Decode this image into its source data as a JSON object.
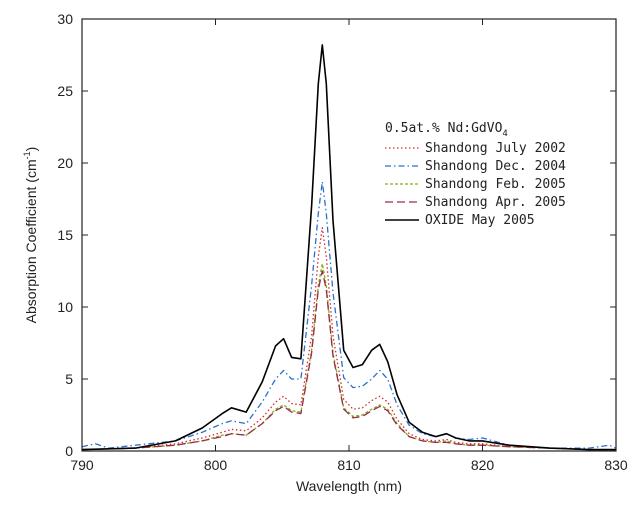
{
  "chart_data": {
    "type": "line",
    "xlabel": "Wavelength (nm)",
    "ylabel": "Absorption Coefficient (cm",
    "ylabel_superscript": "-1",
    "ylabel_close": ")",
    "xlim": [
      790,
      830
    ],
    "ylim": [
      0,
      30
    ],
    "xticks": [
      790,
      800,
      810,
      820,
      830
    ],
    "yticks": [
      0,
      5,
      10,
      15,
      20,
      25,
      30
    ],
    "grid": false,
    "legend_position": "upper-right",
    "legend": {
      "title": "0.5at.% Nd:GdVO",
      "title_subscript": "4"
    },
    "series": [
      {
        "name": "Shandong July 2002",
        "color": "#d8282c",
        "style": "dotted",
        "x": [
          790,
          794,
          797,
          799,
          800.5,
          801.2,
          802.3,
          803.5,
          804.5,
          805.1,
          805.7,
          806.4,
          807.2,
          807.7,
          808.0,
          808.3,
          808.8,
          809.6,
          810.3,
          811.0,
          811.7,
          812.3,
          812.9,
          813.6,
          814.5,
          815.5,
          816.5,
          817.3,
          818.0,
          819.0,
          820.0,
          822.0,
          825.0,
          828.0,
          830.0
        ],
        "values": [
          0.1,
          0.2,
          0.5,
          0.9,
          1.3,
          1.5,
          1.4,
          2.3,
          3.4,
          3.8,
          3.3,
          3.2,
          8.0,
          13.5,
          15.5,
          13.5,
          8.0,
          3.6,
          2.9,
          3.0,
          3.5,
          3.8,
          3.4,
          2.2,
          1.2,
          0.8,
          0.7,
          0.8,
          0.6,
          0.5,
          0.5,
          0.3,
          0.2,
          0.1,
          0.1
        ]
      },
      {
        "name": "Shandong Dec. 2004",
        "color": "#2a6fd0",
        "style": "dash-dot",
        "x": [
          790,
          791,
          792,
          794,
          797,
          799,
          800.5,
          801.2,
          802.3,
          803.5,
          804.5,
          805.1,
          805.7,
          806.4,
          807.2,
          807.7,
          808.0,
          808.3,
          808.8,
          809.6,
          810.3,
          811.0,
          811.7,
          812.3,
          812.9,
          813.6,
          814.5,
          815.5,
          816.5,
          817.3,
          818.0,
          819.0,
          820.0,
          822.0,
          825.0,
          828.0,
          829.5,
          830.0
        ],
        "values": [
          0.3,
          0.5,
          0.2,
          0.4,
          0.7,
          1.3,
          1.9,
          2.1,
          1.9,
          3.4,
          5.0,
          5.6,
          5.0,
          5.0,
          11.5,
          16.5,
          18.7,
          16.5,
          11.0,
          5.1,
          4.4,
          4.5,
          5.0,
          5.6,
          5.0,
          3.2,
          1.8,
          1.2,
          1.0,
          1.2,
          0.9,
          0.8,
          0.9,
          0.4,
          0.2,
          0.2,
          0.4,
          0.2
        ]
      },
      {
        "name": "Shandong Feb. 2005",
        "color": "#7fae1d",
        "style": "dashed-short",
        "x": [
          790,
          794,
          797,
          799,
          800.5,
          801.2,
          802.3,
          803.5,
          804.5,
          805.1,
          805.7,
          806.4,
          807.2,
          807.7,
          808.0,
          808.3,
          808.8,
          809.6,
          810.3,
          811.0,
          811.7,
          812.3,
          812.9,
          813.6,
          814.5,
          815.5,
          816.5,
          817.3,
          818.0,
          819.0,
          820.0,
          822.0,
          825.0,
          828.0,
          830.0
        ],
        "values": [
          0.1,
          0.2,
          0.4,
          0.7,
          1.1,
          1.2,
          1.1,
          1.9,
          2.9,
          3.2,
          2.8,
          2.7,
          7.0,
          11.5,
          13.0,
          11.5,
          6.8,
          3.0,
          2.4,
          2.5,
          2.9,
          3.2,
          2.9,
          1.9,
          1.0,
          0.7,
          0.6,
          0.7,
          0.5,
          0.4,
          0.4,
          0.3,
          0.2,
          0.1,
          0.1
        ]
      },
      {
        "name": "Shandong Apr. 2005",
        "color": "#9c2a4a",
        "style": "dashed-long",
        "x": [
          790,
          794,
          797,
          799,
          800.5,
          801.2,
          802.3,
          803.5,
          804.5,
          805.1,
          805.7,
          806.4,
          807.2,
          807.7,
          808.0,
          808.3,
          808.8,
          809.6,
          810.3,
          811.0,
          811.7,
          812.3,
          812.9,
          813.6,
          814.5,
          815.5,
          816.5,
          817.3,
          818.0,
          819.0,
          820.0,
          822.0,
          825.0,
          828.0,
          830.0
        ],
        "values": [
          0.1,
          0.2,
          0.4,
          0.7,
          1.0,
          1.2,
          1.1,
          1.9,
          2.8,
          3.1,
          2.7,
          2.6,
          6.8,
          11.2,
          12.5,
          11.2,
          6.6,
          2.9,
          2.3,
          2.4,
          2.8,
          3.1,
          2.8,
          1.8,
          1.0,
          0.7,
          0.6,
          0.6,
          0.5,
          0.4,
          0.4,
          0.3,
          0.2,
          0.1,
          0.1
        ]
      },
      {
        "name": "OXIDE May 2005",
        "color": "#000000",
        "style": "solid",
        "x": [
          790,
          794,
          797,
          799,
          800.5,
          801.2,
          802.3,
          803.5,
          804.5,
          805.1,
          805.7,
          806.4,
          807.2,
          807.7,
          808.0,
          808.3,
          808.8,
          809.6,
          810.3,
          811.0,
          811.7,
          812.3,
          812.9,
          813.6,
          814.5,
          815.5,
          816.5,
          817.3,
          818.0,
          819.0,
          820.0,
          822.0,
          825.0,
          828.0,
          830.0
        ],
        "values": [
          0.1,
          0.2,
          0.7,
          1.6,
          2.6,
          3.0,
          2.7,
          4.8,
          7.3,
          7.8,
          6.5,
          6.4,
          17.0,
          25.5,
          28.2,
          25.5,
          16.0,
          7.0,
          5.8,
          6.0,
          7.0,
          7.4,
          6.2,
          3.9,
          2.0,
          1.3,
          1.0,
          1.2,
          0.9,
          0.7,
          0.7,
          0.4,
          0.2,
          0.1,
          0.1
        ]
      }
    ]
  }
}
